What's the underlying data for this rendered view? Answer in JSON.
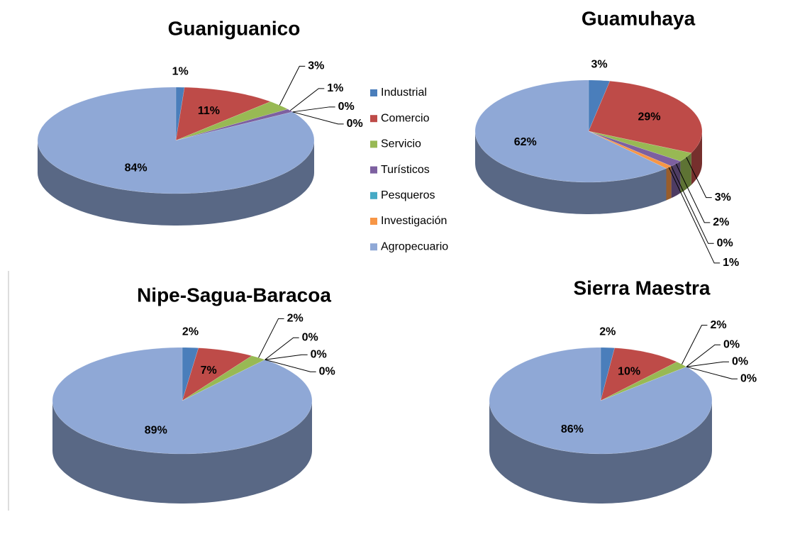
{
  "legend": {
    "categories": [
      "Industrial",
      "Comercio",
      "Servicio",
      "Turísticos",
      "Pesqueros",
      "Investigación",
      "Agropecuario"
    ],
    "colors": [
      "#4a7ebb",
      "#be4b48",
      "#98b954",
      "#7d60a0",
      "#46aac5",
      "#f79646",
      "#8fa8d6"
    ]
  },
  "chart_data": [
    {
      "type": "pie",
      "title": "Guaniguanico",
      "values": [
        1,
        11,
        3,
        1,
        0,
        0,
        84
      ],
      "value_labels": [
        "1%",
        "11%",
        "3%",
        "1%",
        "0%",
        "0%",
        "84%"
      ]
    },
    {
      "type": "pie",
      "title": "Guamuhaya",
      "values": [
        3,
        29,
        3,
        2,
        0,
        1,
        62
      ],
      "value_labels": [
        "3%",
        "29%",
        "3%",
        "2%",
        "0%",
        "1%",
        "62%"
      ]
    },
    {
      "type": "pie",
      "title": "Nipe-Sagua-Baracoa",
      "values": [
        2,
        7,
        2,
        0,
        0,
        0,
        89
      ],
      "value_labels": [
        "2%",
        "7%",
        "2%",
        "0%",
        "0%",
        "0%",
        "89%"
      ]
    },
    {
      "type": "pie",
      "title": "Sierra Maestra",
      "values": [
        2,
        10,
        2,
        0,
        0,
        0,
        86
      ],
      "value_labels": [
        "2%",
        "10%",
        "2%",
        "0%",
        "0%",
        "0%",
        "86%"
      ]
    }
  ]
}
